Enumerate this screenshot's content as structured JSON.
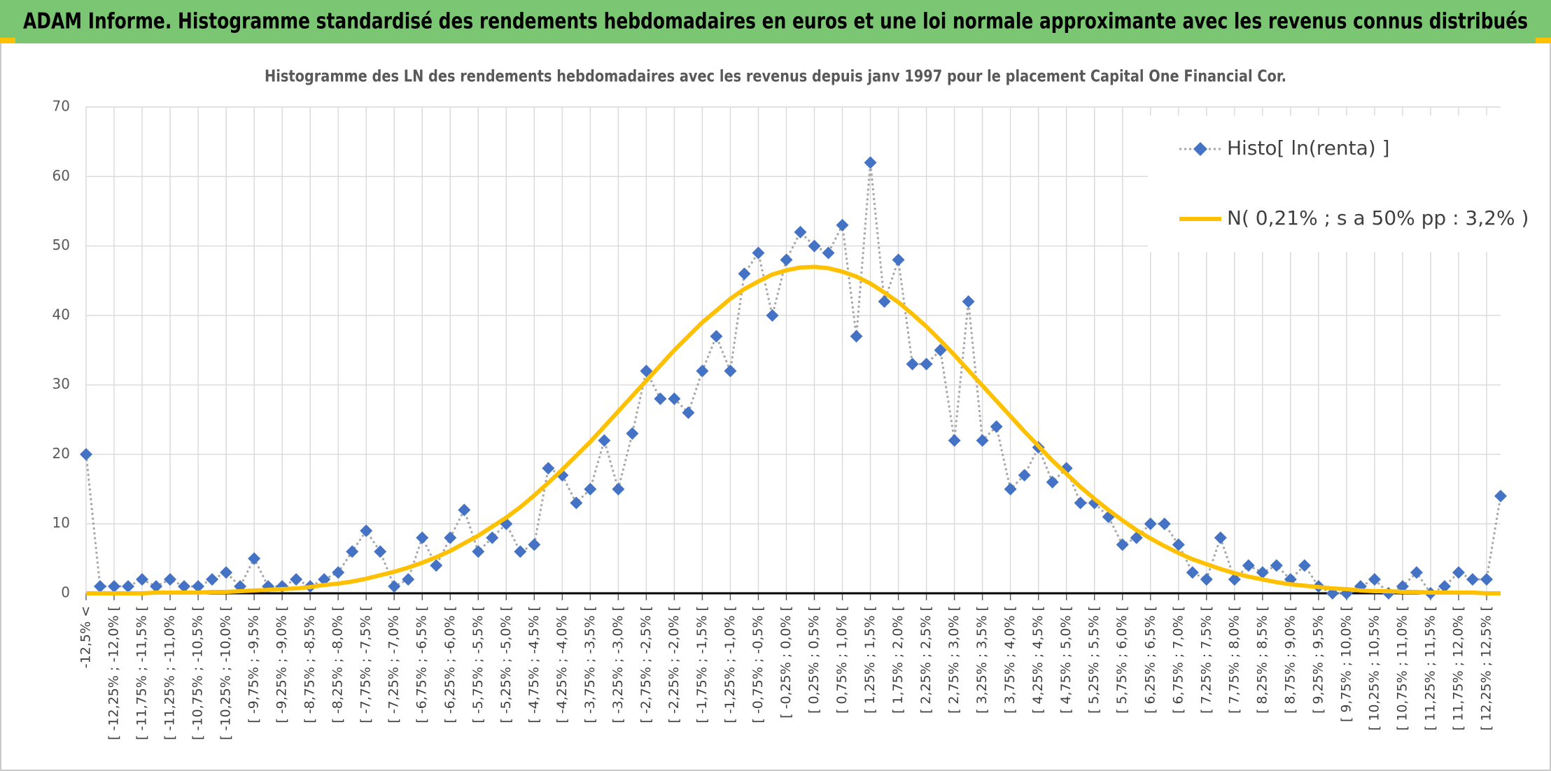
{
  "header": {
    "title": "ADAM Informe. Histogramme standardisé des rendements hebdomadaires en euros et une loi normale approximante avec les revenus connus distribués"
  },
  "chart_data": {
    "type": "line",
    "title": "Histogramme des LN des rendements hebdomadaires avec les revenus depuis janv 1997 pour le placement Capital One Financial Cor.",
    "categories": [
      "-12,5% <",
      null,
      "[ -12,25% ; -12,0% [",
      null,
      "[ -11,75% ; -11,5% [",
      null,
      "[ -11,25% ; -11,0% [",
      null,
      "[ -10,75% ; -10,5% [",
      null,
      "[ -10,25% ; -10,0% [",
      null,
      "[ -9,75% ; -9,5% [",
      null,
      "[ -9,25% ; -9,0% [",
      null,
      "[ -8,75% ; -8,5% [",
      null,
      "[ -8,25% ; -8,0% [",
      null,
      "[ -7,75% ; -7,5% [",
      null,
      "[ -7,25% ; -7,0% [",
      null,
      "[ -6,75% ; -6,5% [",
      null,
      "[ -6,25% ; -6,0% [",
      null,
      "[ -5,75% ; -5,5% [",
      null,
      "[ -5,25% ; -5,0% [",
      null,
      "[ -4,75% ; -4,5% [",
      null,
      "[ -4,25% ; -4,0% [",
      null,
      "[ -3,75% ; -3,5% [",
      null,
      "[ -3,25% ; -3,0% [",
      null,
      "[ -2,75% ; -2,5% [",
      null,
      "[ -2,25% ; -2,0% [",
      null,
      "[ -1,75% ; -1,5% [",
      null,
      "[ -1,25% ; -1,0% [",
      null,
      "[ -0,75% ; -0,5% [",
      null,
      "[ -0,25% ; 0,0% [",
      null,
      "[ 0,25% ; 0,5% [",
      null,
      "[ 0,75% ; 1,0% [",
      null,
      "[ 1,25% ; 1,5% [",
      null,
      "[ 1,75% ; 2,0% [",
      null,
      "[ 2,25% ; 2,5% [",
      null,
      "[ 2,75% ; 3,0% [",
      null,
      "[ 3,25% ; 3,5% [",
      null,
      "[ 3,75% ; 4,0% [",
      null,
      "[ 4,25% ; 4,5% [",
      null,
      "[ 4,75% ; 5,0% [",
      null,
      "[ 5,25% ; 5,5% [",
      null,
      "[ 5,75% ; 6,0% [",
      null,
      "[ 6,25% ; 6,5% [",
      null,
      "[ 6,75% ; 7,0% [",
      null,
      "[ 7,25% ; 7,5% [",
      null,
      "[ 7,75% ; 8,0% [",
      null,
      "[ 8,25% ; 8,5% [",
      null,
      "[ 8,75% ; 9,0% [",
      null,
      "[ 9,25% ; 9,5% [",
      null,
      "[ 9,75% ; 10,0% [",
      null,
      "[ 10,25% ; 10,5% [",
      null,
      "[ 10,75% ; 11,0% [",
      null,
      "[ 11,25% ; 11,5% [",
      null,
      "[ 11,75% ; 12,0% [",
      null,
      "[ 12,25% ; 12,5% [",
      null
    ],
    "series": [
      {
        "name": "Histo[ ln(renta) ]",
        "color": "#4472c4",
        "line_color": "#a6a6a6",
        "line_style": "dotted",
        "marker": "diamond",
        "values": [
          20,
          1,
          1,
          1,
          2,
          1,
          2,
          1,
          1,
          2,
          3,
          1,
          5,
          1,
          1,
          2,
          1,
          2,
          3,
          6,
          9,
          6,
          1,
          2,
          8,
          4,
          8,
          12,
          6,
          8,
          10,
          6,
          7,
          18,
          17,
          13,
          15,
          22,
          15,
          23,
          32,
          28,
          28,
          26,
          32,
          37,
          32,
          46,
          49,
          40,
          48,
          52,
          50,
          49,
          53,
          37,
          62,
          42,
          48,
          33,
          33,
          35,
          22,
          42,
          22,
          24,
          15,
          17,
          21,
          16,
          18,
          13,
          13,
          11,
          7,
          8,
          10,
          10,
          7,
          3,
          2,
          8,
          2,
          4,
          3,
          4,
          2,
          4,
          1,
          0,
          0,
          1,
          2,
          0,
          1,
          3,
          0,
          1,
          3,
          2,
          2,
          14
        ]
      },
      {
        "name": "N( 0,21% ; s a 50% pp : 3,2% )",
        "color": "#ffc000",
        "line_style": "solid",
        "marker": "none",
        "values": [
          0,
          0,
          0,
          0,
          0,
          0.1,
          0.1,
          0.1,
          0.1,
          0.2,
          0.2,
          0.3,
          0.4,
          0.5,
          0.6,
          0.7,
          0.9,
          1.2,
          1.4,
          1.7,
          2.1,
          2.6,
          3.1,
          3.7,
          4.4,
          5.2,
          6.1,
          7.2,
          8.3,
          9.6,
          10.9,
          12.4,
          14.1,
          15.9,
          17.8,
          19.8,
          21.8,
          24.0,
          26.2,
          28.4,
          30.6,
          32.8,
          35.0,
          37.0,
          39.0,
          40.7,
          42.4,
          43.8,
          44.9,
          45.9,
          46.5,
          46.9,
          47.0,
          46.8,
          46.3,
          45.6,
          44.6,
          43.3,
          41.9,
          40.2,
          38.4,
          36.4,
          34.3,
          32.1,
          29.9,
          27.7,
          25.5,
          23.3,
          21.2,
          19.1,
          17.2,
          15.3,
          13.6,
          12.0,
          10.5,
          9.1,
          7.9,
          6.8,
          5.8,
          4.9,
          4.2,
          3.5,
          2.9,
          2.4,
          2.0,
          1.6,
          1.3,
          1.1,
          0.9,
          0.7,
          0.6,
          0.4,
          0.3,
          0.3,
          0.2,
          0.2,
          0.1,
          0.1,
          0.1,
          0.1,
          0,
          0
        ]
      }
    ],
    "ylim": [
      0,
      70
    ],
    "yticks": [
      0,
      10,
      20,
      30,
      40,
      50,
      60,
      70
    ],
    "grid": true,
    "legend": "upper right"
  }
}
